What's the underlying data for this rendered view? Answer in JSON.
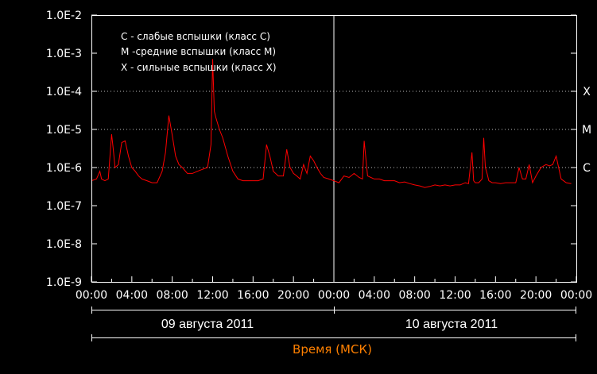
{
  "chart_data": {
    "type": "line",
    "title": "",
    "xlabel": "Время (МСК)",
    "ylabel": "",
    "y_scale": "log",
    "ylim": [
      1e-09,
      0.01
    ],
    "xlim": [
      "2011-08-09 00:00",
      "2011-08-11 00:00"
    ],
    "y_tick_labels": [
      "1.0E-2",
      "1.0E-3",
      "1.0E-4",
      "1.0E-5",
      "1.0E-6",
      "1.0E-7",
      "1.0E-8",
      "1.0E-9"
    ],
    "x_tick_labels": [
      "00:00",
      "04:00",
      "08:00",
      "12:00",
      "16:00",
      "20:00",
      "00:00",
      "04:00",
      "08:00",
      "12:00",
      "16:00",
      "20:00",
      "00:00"
    ],
    "date_labels": [
      "09 августа 2011",
      "10 августа 2011"
    ],
    "flare_class_levels": [
      {
        "label": "X",
        "value": 0.0001
      },
      {
        "label": "M",
        "value": 1e-05
      },
      {
        "label": "C",
        "value": 1e-06
      }
    ],
    "legend": [
      "C - слабые вспышки (класс C)",
      "M -средние вспышки (класс M)",
      "X - сильные вспышки (класс X)"
    ],
    "grid": "dotted lines at C, M, X levels",
    "colors": {
      "series": "#ff0000",
      "axis_title": "#ff8000",
      "frame": "#ffffff",
      "background": "#000000"
    },
    "series": [
      {
        "x": [
          "2011-08-09 00:00",
          "2011-08-09 00:30",
          "2011-08-09 00:50",
          "2011-08-09 01:00",
          "2011-08-09 01:20",
          "2011-08-09 01:40",
          "2011-08-09 02:00",
          "2011-08-09 02:10",
          "2011-08-09 02:20",
          "2011-08-09 02:40",
          "2011-08-09 03:00",
          "2011-08-09 03:20",
          "2011-08-09 03:40",
          "2011-08-09 04:00",
          "2011-08-09 04:20",
          "2011-08-09 04:40",
          "2011-08-09 05:00",
          "2011-08-09 05:30",
          "2011-08-09 06:00",
          "2011-08-09 06:30",
          "2011-08-09 07:00",
          "2011-08-09 07:20",
          "2011-08-09 07:40",
          "2011-08-09 08:00",
          "2011-08-09 08:20",
          "2011-08-09 08:40",
          "2011-08-09 09:00",
          "2011-08-09 09:30",
          "2011-08-09 10:00",
          "2011-08-09 10:30",
          "2011-08-09 11:00",
          "2011-08-09 11:30",
          "2011-08-09 11:50",
          "2011-08-09 12:00",
          "2011-08-09 12:10",
          "2011-08-09 12:20",
          "2011-08-09 12:40",
          "2011-08-09 13:00",
          "2011-08-09 13:30",
          "2011-08-09 14:00",
          "2011-08-09 14:30",
          "2011-08-09 15:00",
          "2011-08-09 15:30",
          "2011-08-09 16:00",
          "2011-08-09 16:30",
          "2011-08-09 17:00",
          "2011-08-09 17:20",
          "2011-08-09 17:40",
          "2011-08-09 18:00",
          "2011-08-09 18:30",
          "2011-08-09 19:00",
          "2011-08-09 19:20",
          "2011-08-09 19:40",
          "2011-08-09 20:00",
          "2011-08-09 20:20",
          "2011-08-09 20:40",
          "2011-08-09 21:00",
          "2011-08-09 21:20",
          "2011-08-09 21:40",
          "2011-08-09 22:00",
          "2011-08-09 22:20",
          "2011-08-09 22:40",
          "2011-08-09 23:00",
          "2011-08-09 23:30",
          "2011-08-10 00:00",
          "2011-08-10 00:30",
          "2011-08-10 01:00",
          "2011-08-10 01:30",
          "2011-08-10 02:00",
          "2011-08-10 02:30",
          "2011-08-10 02:50",
          "2011-08-10 03:00",
          "2011-08-10 03:20",
          "2011-08-10 03:40",
          "2011-08-10 04:00",
          "2011-08-10 04:30",
          "2011-08-10 05:00",
          "2011-08-10 05:30",
          "2011-08-10 06:00",
          "2011-08-10 06:30",
          "2011-08-10 07:00",
          "2011-08-10 07:30",
          "2011-08-10 08:00",
          "2011-08-10 08:30",
          "2011-08-10 09:00",
          "2011-08-10 09:30",
          "2011-08-10 10:00",
          "2011-08-10 10:30",
          "2011-08-10 11:00",
          "2011-08-10 11:30",
          "2011-08-10 12:00",
          "2011-08-10 12:30",
          "2011-08-10 13:00",
          "2011-08-10 13:20",
          "2011-08-10 13:40",
          "2011-08-10 13:50",
          "2011-08-10 14:00",
          "2011-08-10 14:20",
          "2011-08-10 14:40",
          "2011-08-10 14:50",
          "2011-08-10 15:00",
          "2011-08-10 15:10",
          "2011-08-10 15:20",
          "2011-08-10 15:40",
          "2011-08-10 16:00",
          "2011-08-10 16:30",
          "2011-08-10 17:00",
          "2011-08-10 17:30",
          "2011-08-10 18:00",
          "2011-08-10 18:20",
          "2011-08-10 18:40",
          "2011-08-10 19:00",
          "2011-08-10 19:20",
          "2011-08-10 19:40",
          "2011-08-10 20:00",
          "2011-08-10 20:30",
          "2011-08-10 21:00",
          "2011-08-10 21:20",
          "2011-08-10 21:40",
          "2011-08-10 22:00",
          "2011-08-10 22:30",
          "2011-08-10 23:00",
          "2011-08-10 23:30"
        ],
        "y": [
          4.5e-07,
          5e-07,
          8e-07,
          5e-07,
          4.5e-07,
          5e-07,
          7.5e-06,
          3e-06,
          1e-06,
          1.2e-06,
          4.5e-06,
          5e-06,
          2e-06,
          1e-06,
          8e-07,
          6e-07,
          5e-07,
          4.5e-07,
          4e-07,
          4e-07,
          8e-07,
          2.5e-06,
          2.3e-05,
          7e-06,
          2e-06,
          1.2e-06,
          1e-06,
          7e-07,
          7e-07,
          8e-07,
          9e-07,
          1e-06,
          4e-06,
          0.0007,
          3e-05,
          2e-05,
          1e-05,
          6e-06,
          2e-06,
          8e-07,
          5e-07,
          4.5e-07,
          4.5e-07,
          4.5e-07,
          4.5e-07,
          5e-07,
          4e-06,
          2e-06,
          8e-07,
          6e-07,
          6e-07,
          3e-06,
          1e-06,
          7e-07,
          6e-07,
          5e-07,
          1.2e-06,
          7e-07,
          2e-06,
          1.5e-06,
          1e-06,
          7e-07,
          5.5e-07,
          5e-07,
          4.5e-07,
          4e-07,
          6e-07,
          5.5e-07,
          7e-07,
          5.5e-07,
          5e-07,
          5e-06,
          6e-07,
          5.5e-07,
          5e-07,
          5e-07,
          4.5e-07,
          4.5e-07,
          4.5e-07,
          4e-07,
          4.2e-07,
          3.8e-07,
          3.5e-07,
          3.3e-07,
          3e-07,
          3.2e-07,
          3.5e-07,
          3.3e-07,
          3.5e-07,
          3.3e-07,
          3.5e-07,
          3.5e-07,
          4e-07,
          3.8e-07,
          2.5e-06,
          4.5e-07,
          4e-07,
          4e-07,
          5e-07,
          6e-06,
          1e-06,
          7e-07,
          4.5e-07,
          4e-07,
          4e-07,
          3.8e-07,
          4e-07,
          4e-07,
          4e-07,
          1e-06,
          5e-07,
          5e-07,
          1.2e-06,
          4e-07,
          6e-07,
          1e-06,
          1.2e-06,
          1.1e-06,
          1.2e-06,
          2e-06,
          5e-07,
          4e-07,
          3.8e-07
        ]
      }
    ]
  }
}
